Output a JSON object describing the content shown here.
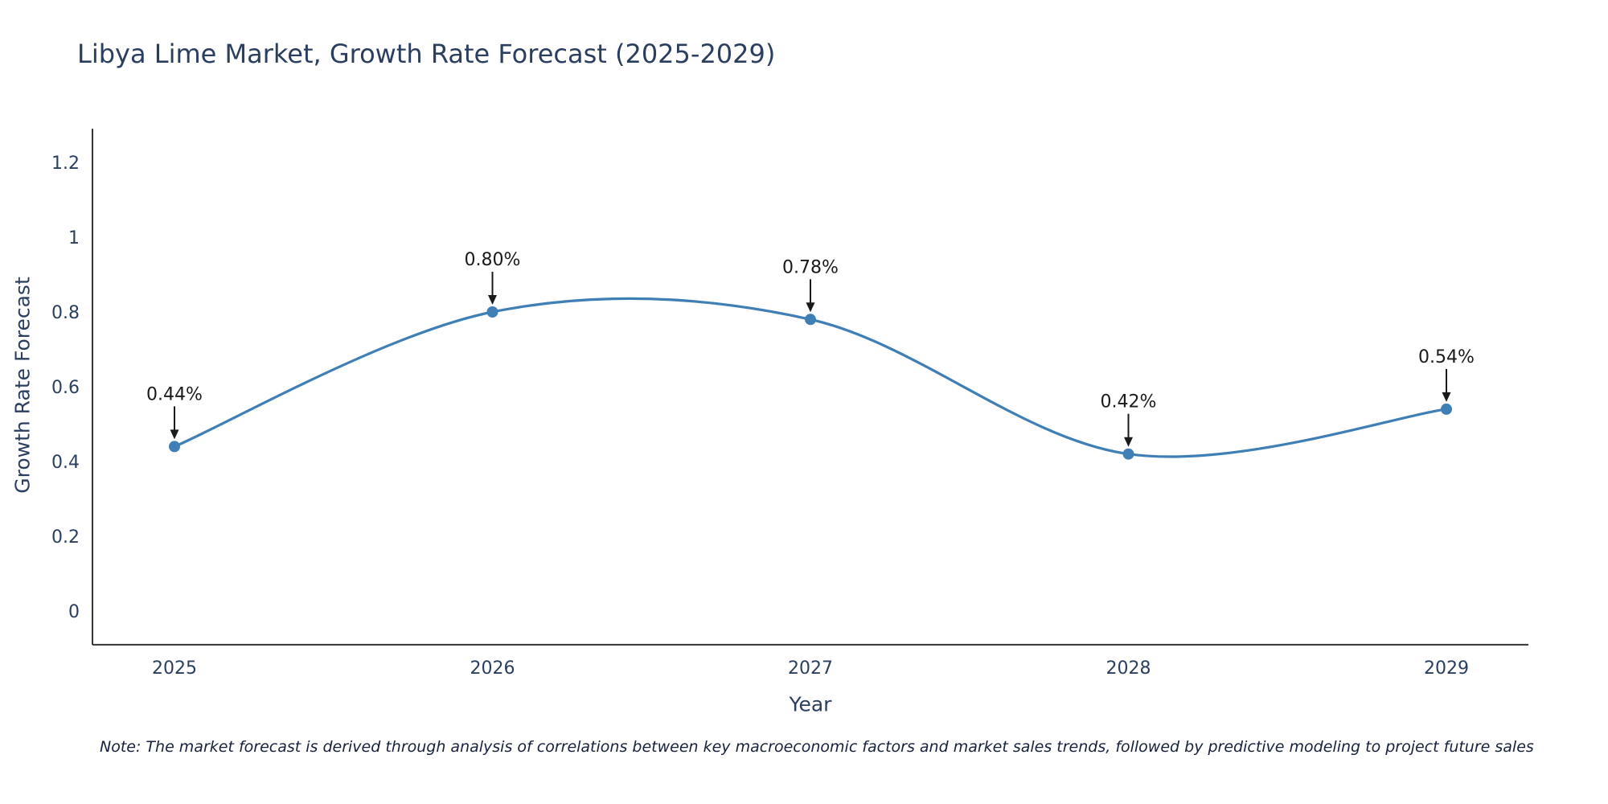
{
  "chart_data": {
    "type": "line",
    "title": "Libya Lime Market, Growth Rate Forecast (2025-2029)",
    "xlabel": "Year",
    "ylabel": "Growth Rate Forecast",
    "categories": [
      "2025",
      "2026",
      "2027",
      "2028",
      "2029"
    ],
    "values": [
      0.44,
      0.8,
      0.78,
      0.42,
      0.54
    ],
    "point_labels": [
      "0.44%",
      "0.80%",
      "0.78%",
      "0.42%",
      "0.54%"
    ],
    "y_ticks": [
      0,
      0.2,
      0.4,
      0.6,
      0.8,
      1,
      1.2
    ],
    "y_tick_labels": [
      "0",
      "0.2",
      "0.4",
      "0.6",
      "0.8",
      "1",
      "1.2"
    ],
    "ylim": [
      -0.09,
      1.29
    ],
    "grid": false,
    "legend": "none",
    "line_shape": "spline",
    "colors": {
      "line": "#3f7fb5",
      "marker": "#3f7fb5",
      "title": "#2a3f5f",
      "tick": "#2a3f5f",
      "axis": "#333333",
      "annotation": "#1a1a1a"
    }
  },
  "note": "Note: The market forecast is derived through analysis of correlations between key macroeconomic factors and market sales trends, followed by predictive modeling to project future sales"
}
